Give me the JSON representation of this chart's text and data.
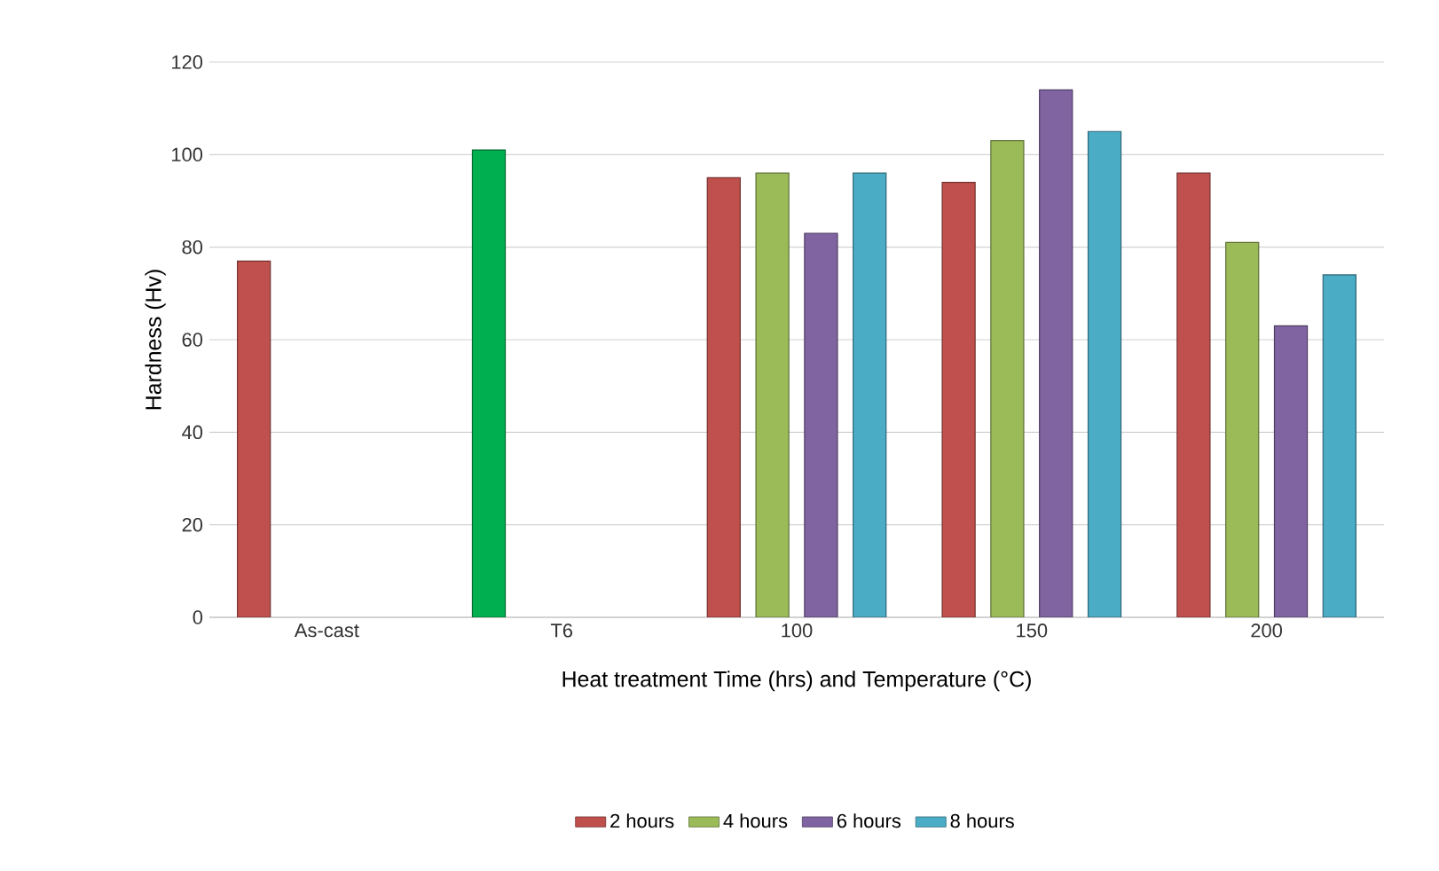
{
  "chart_data": {
    "type": "bar",
    "categories": [
      "As-cast",
      "T6",
      "100",
      "150",
      "200"
    ],
    "xlabel": "Heat treatment Time (hrs) and Temperature (°C)",
    "ylabel": "Hardness (Hv)",
    "series": [
      {
        "name": "2 hours",
        "color": "#c0504d",
        "colors": [
          "#c0504d",
          "#00b050",
          "#c0504d",
          "#c0504d",
          "#c0504d"
        ],
        "values": [
          77,
          101,
          95,
          94,
          96
        ]
      },
      {
        "name": "4 hours",
        "color": "#9bbb59",
        "values": [
          null,
          null,
          96,
          103,
          81
        ]
      },
      {
        "name": "6 hours",
        "color": "#8064a2",
        "values": [
          null,
          null,
          83,
          114,
          63
        ]
      },
      {
        "name": "8 hours",
        "color": "#4bacc6",
        "values": [
          null,
          null,
          96,
          105,
          74
        ]
      }
    ],
    "ylim": [
      0,
      120
    ],
    "yticks": [
      0,
      20,
      40,
      60,
      80,
      100,
      120
    ],
    "grid": "y",
    "legend": "bottom"
  }
}
